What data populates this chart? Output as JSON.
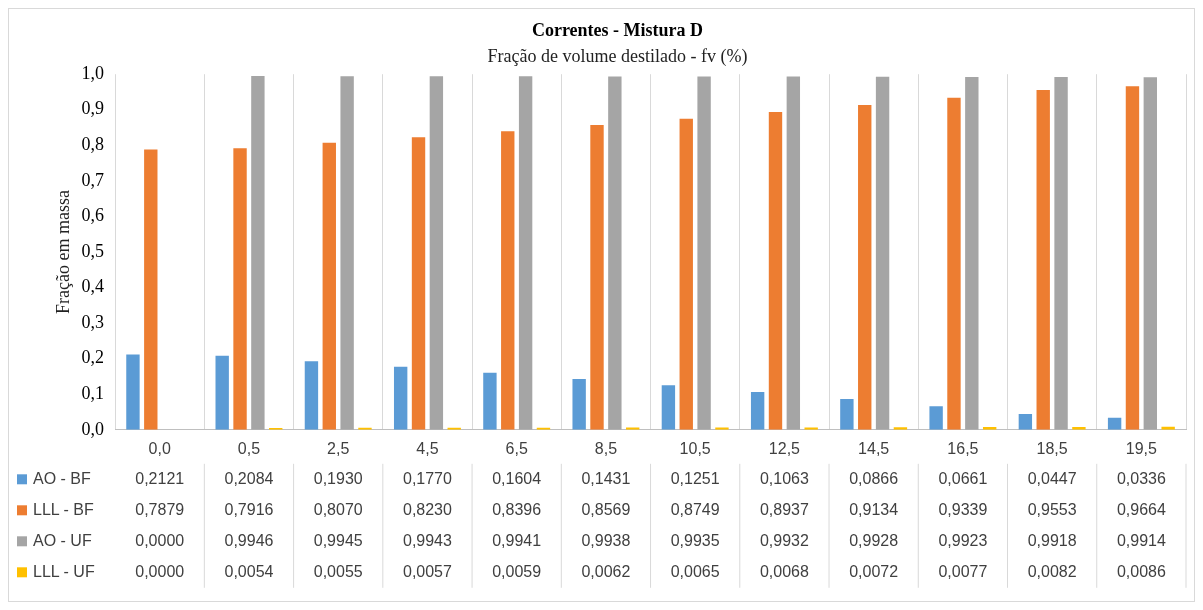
{
  "chart_data": {
    "type": "bar",
    "title": "Correntes - Mistura D",
    "subtitle": "Fração de volume destilado - fv (%)",
    "ylabel": "Fração em massa",
    "categories": [
      "0,0",
      "0,5",
      "2,5",
      "4,5",
      "6,5",
      "8,5",
      "10,5",
      "12,5",
      "14,5",
      "16,5",
      "18,5",
      "19,5"
    ],
    "ylim": [
      0,
      1
    ],
    "yticks": [
      {
        "value": 0,
        "label": "0,0"
      },
      {
        "value": 0.1,
        "label": "0,1"
      },
      {
        "value": 0.2,
        "label": "0,2"
      },
      {
        "value": 0.3,
        "label": "0,3"
      },
      {
        "value": 0.4,
        "label": "0,4"
      },
      {
        "value": 0.5,
        "label": "0,5"
      },
      {
        "value": 0.6,
        "label": "0,6"
      },
      {
        "value": 0.7,
        "label": "0,7"
      },
      {
        "value": 0.8,
        "label": "0,8"
      },
      {
        "value": 0.9,
        "label": "0,9"
      },
      {
        "value": 1,
        "label": "1,0"
      }
    ],
    "grid": "x",
    "legend": "bottom",
    "series": [
      {
        "name": "AO - BF",
        "color": "#5b9bd5",
        "values": [
          0.2121,
          0.2084,
          0.193,
          0.177,
          0.1604,
          0.1431,
          0.1251,
          0.1063,
          0.0866,
          0.0661,
          0.0447,
          0.0336
        ],
        "value_labels": [
          "0,2121",
          "0,2084",
          "0,1930",
          "0,1770",
          "0,1604",
          "0,1431",
          "0,1251",
          "0,1063",
          "0,0866",
          "0,0661",
          "0,0447",
          "0,0336"
        ]
      },
      {
        "name": "LLL - BF",
        "color": "#ed7d31",
        "values": [
          0.7879,
          0.7916,
          0.807,
          0.823,
          0.8396,
          0.8569,
          0.8749,
          0.8937,
          0.9134,
          0.9339,
          0.9553,
          0.9664
        ],
        "value_labels": [
          "0,7879",
          "0,7916",
          "0,8070",
          "0,8230",
          "0,8396",
          "0,8569",
          "0,8749",
          "0,8937",
          "0,9134",
          "0,9339",
          "0,9553",
          "0,9664"
        ]
      },
      {
        "name": "AO - UF",
        "color": "#a5a5a5",
        "values": [
          0.0,
          0.9946,
          0.9945,
          0.9943,
          0.9941,
          0.9938,
          0.9935,
          0.9932,
          0.9928,
          0.9923,
          0.9918,
          0.9914
        ],
        "value_labels": [
          "0,0000",
          "0,9946",
          "0,9945",
          "0,9943",
          "0,9941",
          "0,9938",
          "0,9935",
          "0,9932",
          "0,9928",
          "0,9923",
          "0,9918",
          "0,9914"
        ]
      },
      {
        "name": "LLL - UF",
        "color": "#ffc000",
        "values": [
          0.0,
          0.0054,
          0.0055,
          0.0057,
          0.0059,
          0.0062,
          0.0065,
          0.0068,
          0.0072,
          0.0077,
          0.0082,
          0.0086
        ],
        "value_labels": [
          "0,0000",
          "0,0054",
          "0,0055",
          "0,0057",
          "0,0059",
          "0,0062",
          "0,0065",
          "0,0068",
          "0,0072",
          "0,0077",
          "0,0082",
          "0,0086"
        ]
      }
    ]
  }
}
